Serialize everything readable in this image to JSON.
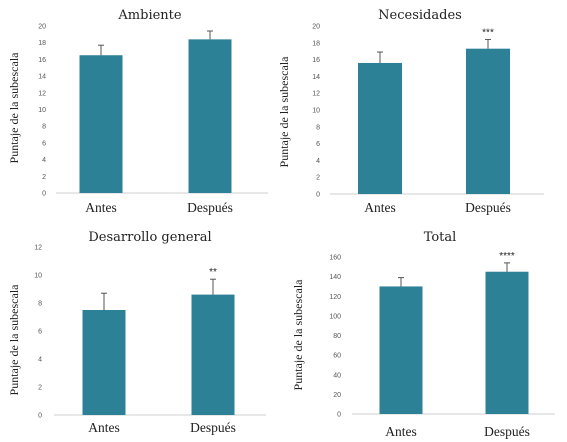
{
  "colors": {
    "bar": "#2d8196",
    "axis": "#cfcfcf",
    "error": "#555555"
  },
  "chart_data": [
    {
      "type": "bar",
      "title": "Ambiente",
      "ylabel": "Puntaje de la subescala",
      "categories": [
        "Antes",
        "Después"
      ],
      "values": [
        16.5,
        18.4
      ],
      "errors": [
        1.2,
        1.0
      ],
      "significance": [
        "",
        ""
      ],
      "ylim": [
        0,
        20
      ],
      "yticks": [
        0,
        2,
        4,
        6,
        8,
        10,
        12,
        14,
        16,
        18,
        20
      ],
      "grid": false,
      "legend": "none"
    },
    {
      "type": "bar",
      "title": "Necesidades",
      "ylabel": "Puntaje de la subescala",
      "categories": [
        "Antes",
        "Después"
      ],
      "values": [
        15.6,
        17.3
      ],
      "errors": [
        1.3,
        1.1
      ],
      "significance": [
        "",
        "***"
      ],
      "ylim": [
        0,
        20
      ],
      "yticks": [
        0,
        2,
        4,
        6,
        8,
        10,
        12,
        14,
        16,
        18,
        20
      ],
      "grid": false,
      "legend": "none"
    },
    {
      "type": "bar",
      "title": "Desarrollo general",
      "ylabel": "Puntaje de la subescala",
      "categories": [
        "Antes",
        "Después"
      ],
      "values": [
        7.5,
        8.6
      ],
      "errors": [
        1.2,
        1.1
      ],
      "significance": [
        "",
        "**"
      ],
      "ylim": [
        0,
        12
      ],
      "yticks": [
        0,
        2,
        4,
        6,
        8,
        10,
        12
      ],
      "grid": false,
      "legend": "none"
    },
    {
      "type": "bar",
      "title": "Total",
      "ylabel": "Puntaje de la subescala",
      "categories": [
        "Antes",
        "Después"
      ],
      "values": [
        130,
        145
      ],
      "errors": [
        9,
        9
      ],
      "significance": [
        "",
        "****"
      ],
      "ylim": [
        0,
        160
      ],
      "yticks": [
        0,
        20,
        40,
        60,
        80,
        100,
        120,
        140,
        160
      ],
      "grid": false,
      "legend": "none"
    }
  ]
}
